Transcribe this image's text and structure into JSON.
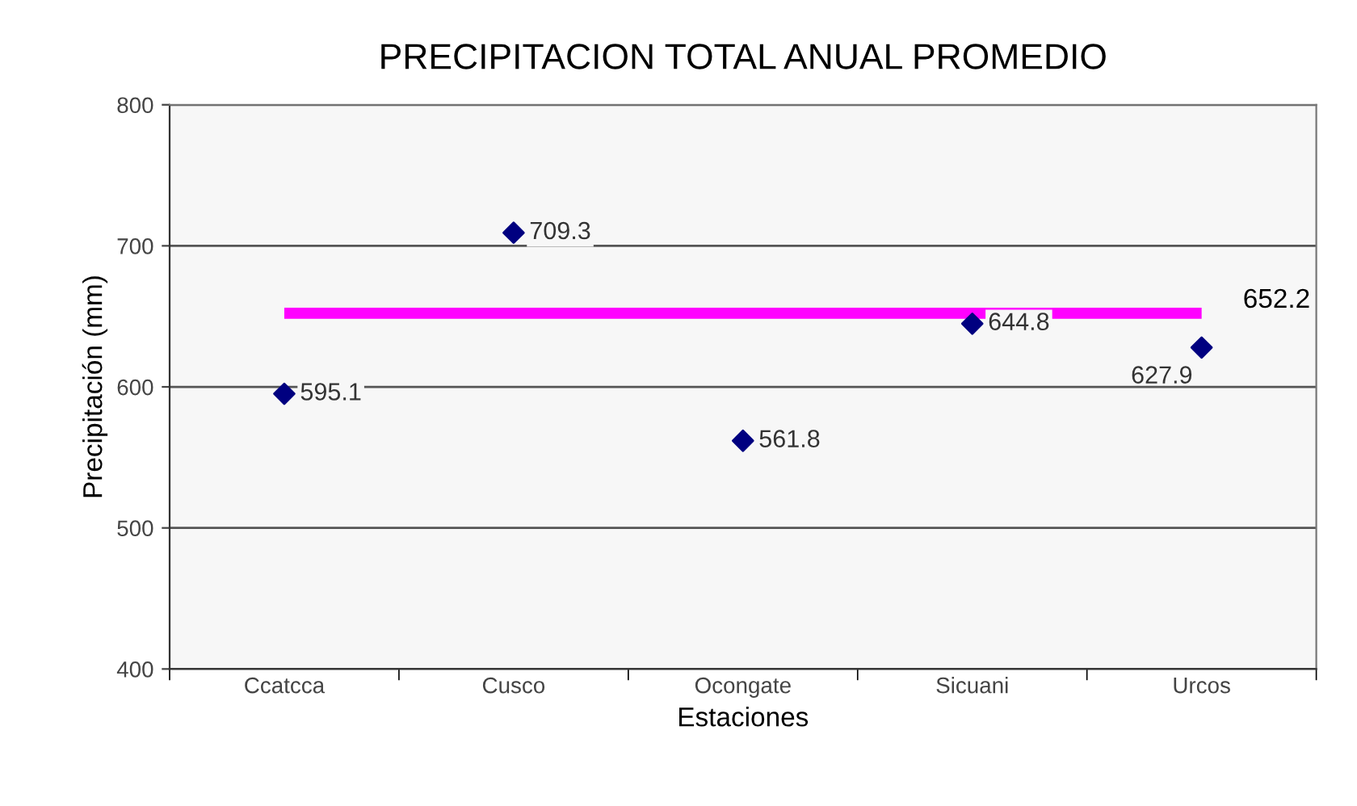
{
  "chart_data": {
    "type": "scatter",
    "title": "PRECIPITACION TOTAL ANUAL PROMEDIO",
    "xlabel": "Estaciones",
    "ylabel": "Precipitación (mm)",
    "categories": [
      "Ccatcca",
      "Cusco",
      "Ocongate",
      "Sicuani",
      "Urcos"
    ],
    "series": [
      {
        "color": "#000080",
        "values": [
          595.1,
          709.3,
          561.8,
          644.8,
          627.9
        ]
      }
    ],
    "data_labels": true,
    "marker": "diamond",
    "ref_lines": [
      {
        "axis": "y",
        "value": 652.2,
        "label": "652.2",
        "color": "#ff00ff"
      }
    ],
    "ylim": [
      400,
      800
    ],
    "yticks": [
      400,
      500,
      600,
      700,
      800
    ],
    "grid": "y",
    "legend": false
  }
}
